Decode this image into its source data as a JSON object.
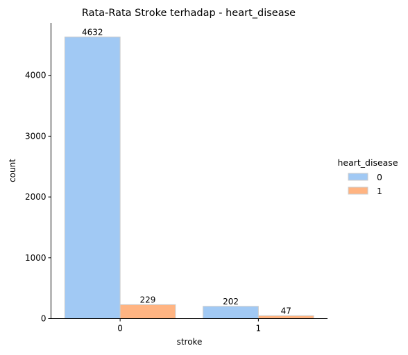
{
  "chart_data": {
    "type": "bar",
    "title": "Rata-Rata Stroke terhadap - heart_disease",
    "xlabel": "stroke",
    "ylabel": "count",
    "categories": [
      "0",
      "1"
    ],
    "ylim": [
      0,
      4863
    ],
    "yticks": [
      0,
      1000,
      2000,
      3000,
      4000
    ],
    "series": [
      {
        "name": "0",
        "values": [
          4632,
          202
        ],
        "color": "#a1c9f4"
      },
      {
        "name": "1",
        "values": [
          229,
          47
        ],
        "color": "#ffb482"
      }
    ],
    "legend": {
      "title": "heart_disease",
      "placement": "right"
    },
    "grid": false
  }
}
